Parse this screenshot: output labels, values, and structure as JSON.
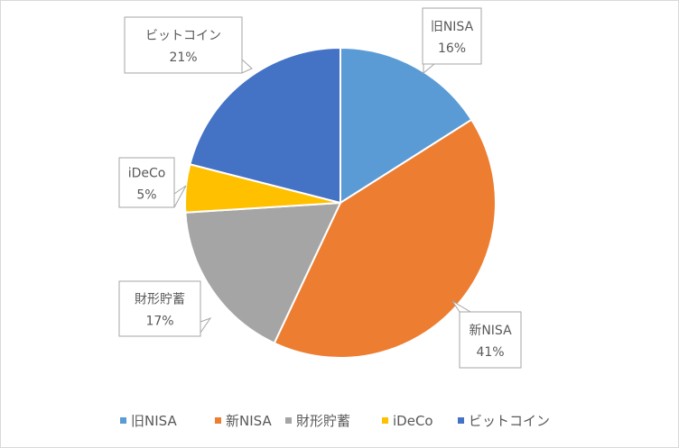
{
  "chart_data": {
    "type": "pie",
    "categories": [
      "旧NISA",
      "新NISA",
      "財形貯蓄",
      "iDeCo",
      "ビットコイン"
    ],
    "values": [
      16,
      41,
      17,
      5,
      21
    ],
    "value_labels": [
      "16%",
      "41%",
      "17%",
      "5%",
      "21%"
    ],
    "colors": [
      "#5b9bd5",
      "#ed7d31",
      "#a5a5a5",
      "#ffc000",
      "#4472c4"
    ],
    "legend_position": "bottom",
    "data_labels": "callout with category name and percentage"
  }
}
